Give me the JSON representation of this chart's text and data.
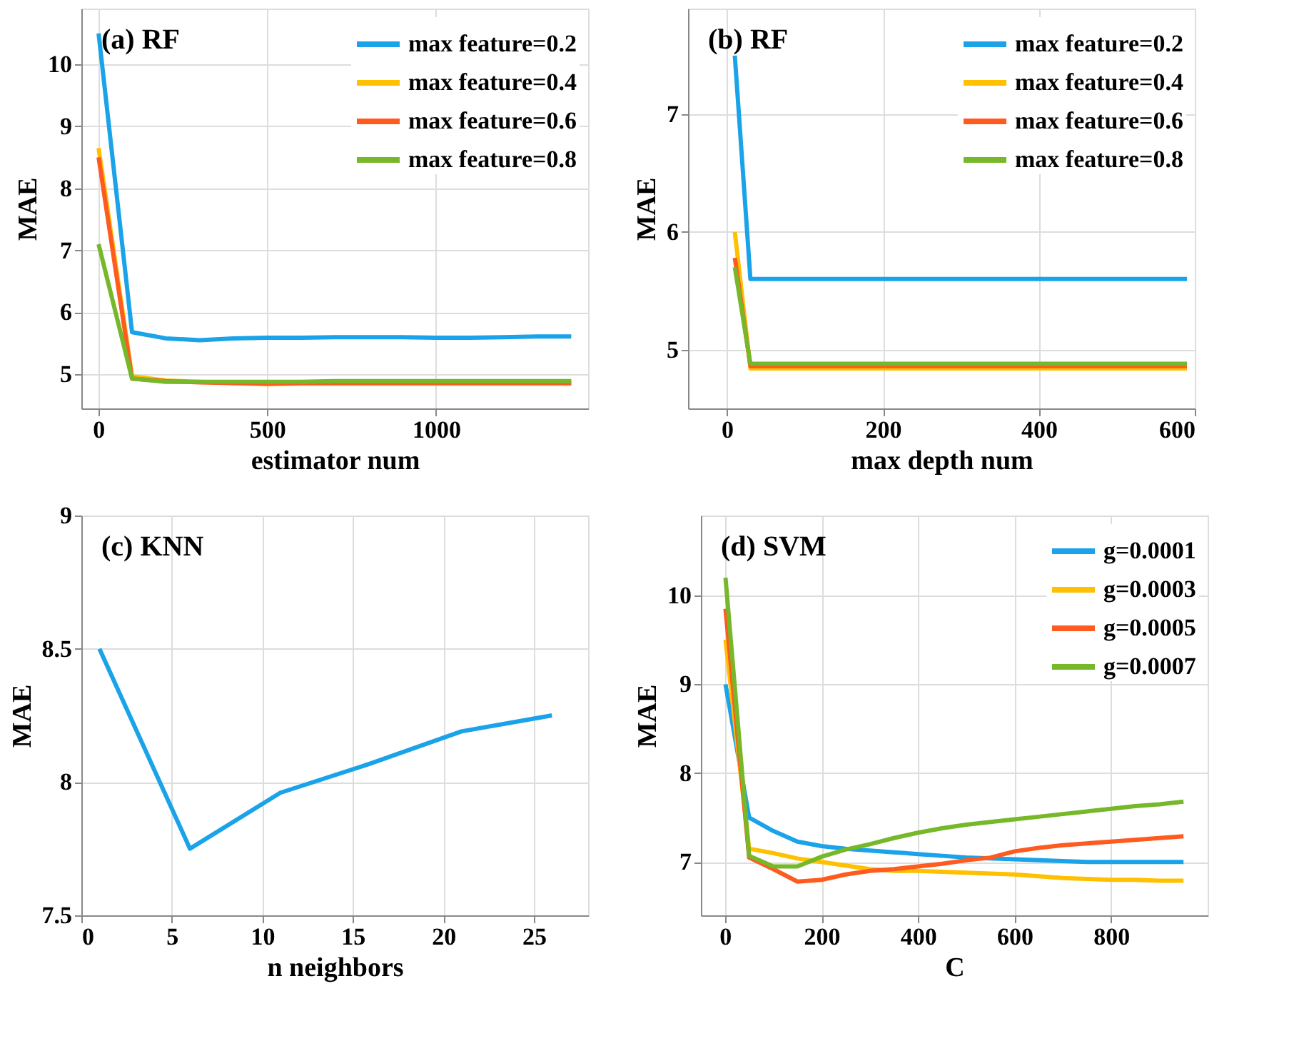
{
  "chart_data": [
    {
      "type": "line",
      "xlabel": "estimator num",
      "ylabel": "MAE",
      "annotations": [
        "(a) RF"
      ],
      "x": [
        1,
        100,
        200,
        300,
        400,
        500,
        600,
        700,
        800,
        900,
        1000,
        1100,
        1200,
        1300,
        1400
      ],
      "series": [
        {
          "name": "max feature=0.2",
          "color": "#1aa3e8",
          "values": [
            10.5,
            5.68,
            5.58,
            5.55,
            5.58,
            5.59,
            5.59,
            5.6,
            5.6,
            5.6,
            5.59,
            5.59,
            5.6,
            5.61,
            5.61
          ]
        },
        {
          "name": "max feature=0.4",
          "color": "#ffc000",
          "values": [
            8.65,
            4.97,
            4.9,
            4.88,
            4.86,
            4.84,
            4.85,
            4.85,
            4.85,
            4.85,
            4.85,
            4.85,
            4.85,
            4.85,
            4.85
          ]
        },
        {
          "name": "max feature=0.6",
          "color": "#ff5a1f",
          "values": [
            8.5,
            4.93,
            4.89,
            4.87,
            4.86,
            4.85,
            4.86,
            4.86,
            4.86,
            4.86,
            4.86,
            4.86,
            4.86,
            4.86,
            4.86
          ]
        },
        {
          "name": "max feature=0.8",
          "color": "#77b82a",
          "values": [
            7.1,
            4.93,
            4.88,
            4.88,
            4.88,
            4.88,
            4.88,
            4.89,
            4.89,
            4.89,
            4.89,
            4.89,
            4.89,
            4.89,
            4.89
          ]
        }
      ],
      "xlim": [
        -50,
        1450
      ],
      "xticks": [
        0,
        500,
        1000
      ],
      "ylim": [
        4.45,
        10.9
      ],
      "yticks": [
        5,
        6,
        7,
        8,
        9,
        10
      ],
      "grid": true,
      "legend": "top right",
      "line_style": "solid",
      "marker": "none"
    },
    {
      "type": "line",
      "xlabel": "max depth num",
      "ylabel": "MAE",
      "annotations": [
        "(b) RF"
      ],
      "x": [
        10,
        30,
        100,
        200,
        300,
        400,
        500,
        590
      ],
      "series": [
        {
          "name": "max feature=0.2",
          "color": "#1aa3e8",
          "values": [
            7.5,
            5.6,
            5.6,
            5.6,
            5.6,
            5.6,
            5.6,
            5.6
          ]
        },
        {
          "name": "max feature=0.4",
          "color": "#ffc000",
          "values": [
            6.0,
            4.84,
            4.84,
            4.84,
            4.84,
            4.84,
            4.84,
            4.84
          ]
        },
        {
          "name": "max feature=0.6",
          "color": "#ff5a1f",
          "values": [
            5.78,
            4.86,
            4.86,
            4.86,
            4.86,
            4.86,
            4.86,
            4.86
          ]
        },
        {
          "name": "max feature=0.8",
          "color": "#77b82a",
          "values": [
            5.7,
            4.88,
            4.88,
            4.88,
            4.88,
            4.88,
            4.88,
            4.88
          ]
        }
      ],
      "xlim": [
        -50,
        600
      ],
      "xticks": [
        0,
        200,
        400,
        600
      ],
      "ylim": [
        4.5,
        7.9
      ],
      "yticks": [
        5,
        6,
        7
      ],
      "grid": true,
      "legend": "top right",
      "line_style": "solid",
      "marker": "none"
    },
    {
      "type": "line",
      "xlabel": "n neighbors",
      "ylabel": "MAE",
      "annotations": [
        "(c) KNN"
      ],
      "x": [
        1,
        6,
        11,
        16,
        21,
        26
      ],
      "series": [
        {
          "color": "#1aa3e8",
          "values": [
            8.5,
            7.75,
            7.96,
            8.07,
            8.19,
            8.25
          ]
        }
      ],
      "xlim": [
        0,
        28
      ],
      "xticks": [
        0,
        5,
        10,
        15,
        20,
        25
      ],
      "ylim": [
        7.5,
        9
      ],
      "yticks": [
        7.5,
        8,
        8.5,
        9
      ],
      "grid": true,
      "line_style": "solid",
      "marker": "none"
    },
    {
      "type": "line",
      "xlabel": "C",
      "ylabel": "MAE",
      "annotations": [
        "(d) SVM"
      ],
      "x": [
        1,
        50,
        100,
        150,
        200,
        250,
        300,
        350,
        400,
        450,
        500,
        550,
        600,
        650,
        700,
        750,
        800,
        850,
        900,
        950
      ],
      "series": [
        {
          "name": "g=0.0001",
          "color": "#1aa3e8",
          "values": [
            9.0,
            7.5,
            7.35,
            7.23,
            7.18,
            7.15,
            7.13,
            7.11,
            7.09,
            7.07,
            7.05,
            7.04,
            7.03,
            7.02,
            7.01,
            7.0,
            7.0,
            7.0,
            7.0,
            7.0
          ]
        },
        {
          "name": "g=0.0003",
          "color": "#ffc000",
          "values": [
            9.5,
            7.15,
            7.1,
            7.04,
            7.0,
            6.96,
            6.92,
            6.9,
            6.9,
            6.89,
            6.88,
            6.87,
            6.86,
            6.84,
            6.82,
            6.81,
            6.8,
            6.8,
            6.79,
            6.79
          ]
        },
        {
          "name": "g=0.0005",
          "color": "#ff5a1f",
          "values": [
            9.85,
            7.05,
            6.92,
            6.78,
            6.8,
            6.86,
            6.9,
            6.92,
            6.95,
            6.98,
            7.02,
            7.05,
            7.12,
            7.16,
            7.19,
            7.21,
            7.23,
            7.25,
            7.27,
            7.29
          ]
        },
        {
          "name": "g=0.0007",
          "color": "#77b82a",
          "values": [
            10.2,
            7.07,
            6.95,
            6.95,
            7.06,
            7.14,
            7.2,
            7.27,
            7.33,
            7.38,
            7.42,
            7.45,
            7.48,
            7.51,
            7.54,
            7.57,
            7.6,
            7.63,
            7.65,
            7.68
          ]
        }
      ],
      "xlim": [
        -50,
        1000
      ],
      "xticks": [
        0,
        200,
        400,
        600,
        800
      ],
      "ylim": [
        6.4,
        10.9
      ],
      "yticks": [
        7,
        8,
        9,
        10
      ],
      "grid": true,
      "legend": "top right",
      "line_style": "solid",
      "marker": "none"
    }
  ]
}
